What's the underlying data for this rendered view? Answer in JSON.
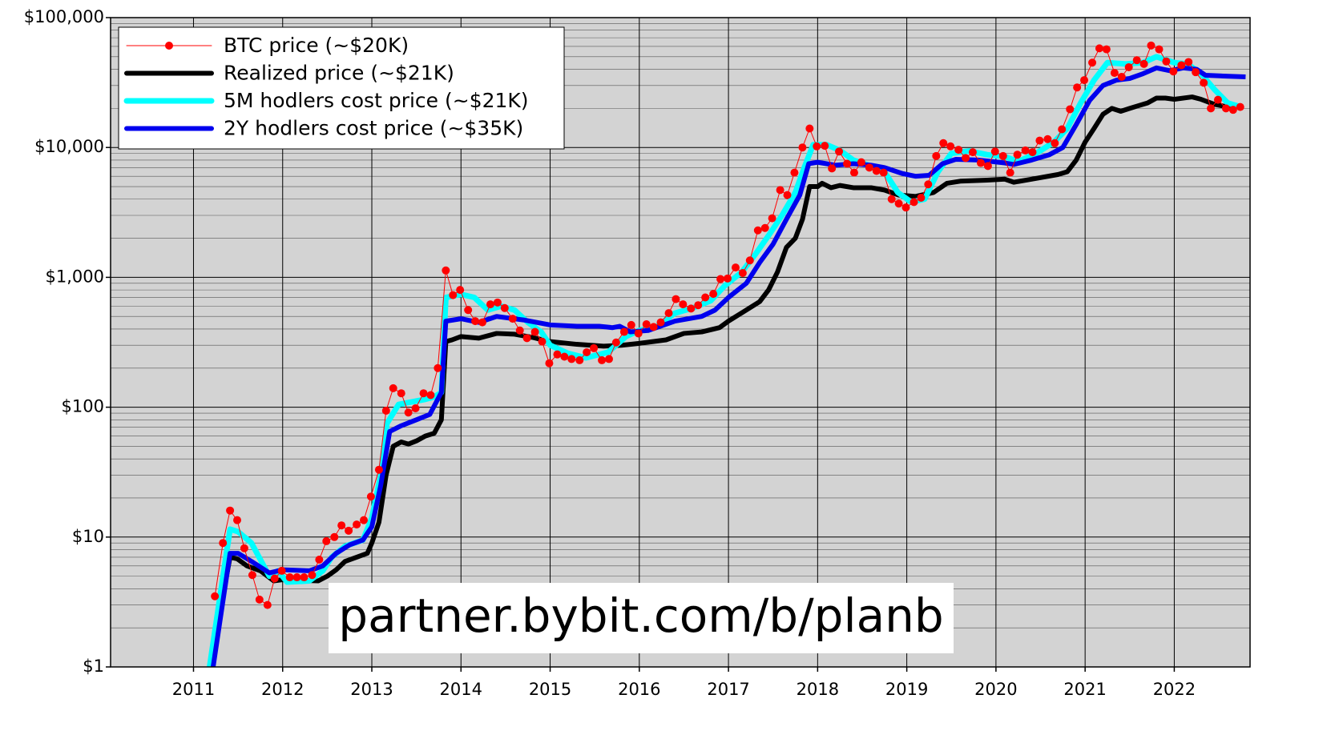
{
  "chart_data": {
    "type": "line",
    "log_scale": true,
    "grid": true,
    "legend": "upper-left",
    "annotation": "partner.bybit.com/b/planb",
    "xlim": [
      2010.07,
      2022.85
    ],
    "xticks": [
      2011,
      2012,
      2013,
      2014,
      2015,
      2016,
      2017,
      2018,
      2019,
      2020,
      2021,
      2022
    ],
    "ylim": [
      1,
      100000
    ],
    "yticks": [
      {
        "value": 1,
        "label": "$1"
      },
      {
        "value": 10,
        "label": "$10"
      },
      {
        "value": 100,
        "label": "$100"
      },
      {
        "value": 1000,
        "label": "$1,000"
      },
      {
        "value": 10000,
        "label": "$10,000"
      },
      {
        "value": 100000,
        "label": "$100,000"
      }
    ],
    "series": [
      {
        "name": "BTC price (~$20K)",
        "color": "#ff0000",
        "markers": true,
        "x": [
          2011.24,
          2011.33,
          2011.41,
          2011.49,
          2011.57,
          2011.66,
          2011.74,
          2011.83,
          2011.91,
          2011.99,
          2012.08,
          2012.16,
          2012.24,
          2012.33,
          2012.41,
          2012.49,
          2012.58,
          2012.66,
          2012.74,
          2012.83,
          2012.91,
          2012.99,
          2013.08,
          2013.16,
          2013.24,
          2013.33,
          2013.41,
          2013.49,
          2013.58,
          2013.66,
          2013.74,
          2013.83,
          2013.91,
          2013.99,
          2014.08,
          2014.16,
          2014.24,
          2014.33,
          2014.41,
          2014.49,
          2014.58,
          2014.66,
          2014.74,
          2014.83,
          2014.91,
          2014.99,
          2015.08,
          2015.16,
          2015.24,
          2015.33,
          2015.41,
          2015.49,
          2015.58,
          2015.66,
          2015.74,
          2015.83,
          2015.91,
          2015.99,
          2016.08,
          2016.16,
          2016.24,
          2016.33,
          2016.41,
          2016.49,
          2016.58,
          2016.66,
          2016.74,
          2016.83,
          2016.91,
          2016.99,
          2017.08,
          2017.16,
          2017.24,
          2017.33,
          2017.41,
          2017.49,
          2017.58,
          2017.66,
          2017.74,
          2017.83,
          2017.91,
          2017.99,
          2018.08,
          2018.16,
          2018.24,
          2018.33,
          2018.41,
          2018.49,
          2018.58,
          2018.66,
          2018.74,
          2018.83,
          2018.91,
          2018.99,
          2019.08,
          2019.16,
          2019.24,
          2019.33,
          2019.41,
          2019.49,
          2019.58,
          2019.66,
          2019.74,
          2019.83,
          2019.91,
          2019.99,
          2020.08,
          2020.16,
          2020.24,
          2020.33,
          2020.41,
          2020.49,
          2020.58,
          2020.66,
          2020.74,
          2020.83,
          2020.91,
          2020.99,
          2021.08,
          2021.16,
          2021.24,
          2021.33,
          2021.41,
          2021.49,
          2021.58,
          2021.66,
          2021.74,
          2021.83,
          2021.91,
          2021.99,
          2022.08,
          2022.16,
          2022.24,
          2022.33,
          2022.41,
          2022.49,
          2022.58,
          2022.66,
          2022.74
        ],
        "values": [
          3.5,
          9,
          16,
          13.5,
          8.2,
          5.1,
          3.3,
          3.0,
          4.8,
          5.5,
          4.9,
          4.9,
          4.9,
          5.1,
          6.7,
          9.3,
          10,
          12.3,
          11.2,
          12.5,
          13.5,
          20.5,
          33,
          94,
          140,
          128,
          91,
          98,
          128,
          124,
          200,
          1130,
          730,
          800,
          560,
          460,
          450,
          620,
          640,
          580,
          480,
          390,
          340,
          380,
          320,
          218,
          255,
          245,
          235,
          230,
          265,
          285,
          230,
          235,
          315,
          380,
          430,
          370,
          435,
          415,
          450,
          530,
          680,
          620,
          575,
          610,
          700,
          745,
          970,
          980,
          1190,
          1080,
          1350,
          2300,
          2400,
          2850,
          4700,
          4300,
          6400,
          10000,
          14000,
          10200,
          10300,
          6900,
          9300,
          7500,
          6400,
          7700,
          7000,
          6600,
          6400,
          4000,
          3700,
          3450,
          3800,
          4100,
          5200,
          8600,
          10800,
          10200,
          9600,
          8300,
          9200,
          7600,
          7200,
          9300,
          8600,
          6400,
          8800,
          9500,
          9200,
          11300,
          11600,
          10800,
          13800,
          19700,
          29000,
          33000,
          45000,
          58000,
          57000,
          37500,
          35000,
          41500,
          47000,
          44000,
          61000,
          57000,
          46000,
          38500,
          43000,
          45500,
          38000,
          31500,
          20000,
          23300,
          20000,
          19500,
          20500
        ]
      },
      {
        "name": "Realized price (~$21K)",
        "color": "#000000",
        "width": 6,
        "x": [
          2011.18,
          2011.41,
          2011.49,
          2011.6,
          2011.75,
          2011.9,
          2012.0,
          2012.4,
          2012.5,
          2012.6,
          2012.7,
          2012.83,
          2012.95,
          2013.0,
          2013.08,
          2013.16,
          2013.24,
          2013.33,
          2013.41,
          2013.5,
          2013.6,
          2013.7,
          2013.78,
          2013.83,
          2013.9,
          2014.0,
          2014.2,
          2014.4,
          2014.6,
          2014.8,
          2015.0,
          2015.3,
          2015.6,
          2015.8,
          2016.0,
          2016.3,
          2016.5,
          2016.7,
          2016.9,
          2017.0,
          2017.2,
          2017.35,
          2017.45,
          2017.55,
          2017.65,
          2017.75,
          2017.83,
          2017.91,
          2018.0,
          2018.05,
          2018.15,
          2018.25,
          2018.4,
          2018.6,
          2018.75,
          2018.91,
          2019.1,
          2019.3,
          2019.45,
          2019.6,
          2019.9,
          2020.1,
          2020.2,
          2020.4,
          2020.7,
          2020.8,
          2020.9,
          2021.0,
          2021.1,
          2021.2,
          2021.3,
          2021.4,
          2021.5,
          2021.6,
          2021.7,
          2021.8,
          2021.9,
          2022.0,
          2022.2,
          2022.3,
          2022.45,
          2022.6,
          2022.75
        ],
        "values": [
          1,
          7,
          6.8,
          6,
          5.5,
          4.6,
          4.7,
          4.6,
          5,
          5.6,
          6.5,
          7,
          7.5,
          9,
          13,
          30,
          50,
          54,
          52,
          55,
          60,
          63,
          80,
          320,
          330,
          350,
          340,
          370,
          365,
          345,
          320,
          305,
          295,
          300,
          310,
          330,
          370,
          380,
          410,
          460,
          560,
          650,
          800,
          1100,
          1700,
          2000,
          2800,
          5000,
          5000,
          5300,
          4900,
          5100,
          4900,
          4900,
          4700,
          4300,
          4200,
          4500,
          5300,
          5500,
          5600,
          5700,
          5400,
          5700,
          6200,
          6500,
          8000,
          11000,
          14000,
          18000,
          20000,
          19000,
          20000,
          21000,
          22000,
          24000,
          24000,
          23500,
          24500,
          23500,
          21500,
          20500,
          21000
        ]
      },
      {
        "name": "5M hodlers cost price (~$21K)",
        "color": "#00ffff",
        "width": 7,
        "x": [
          2011.18,
          2011.41,
          2011.5,
          2011.65,
          2011.85,
          2011.95,
          2012.05,
          2012.3,
          2012.45,
          2012.55,
          2012.7,
          2012.9,
          2013.0,
          2013.1,
          2013.17,
          2013.3,
          2013.45,
          2013.6,
          2013.7,
          2013.78,
          2013.83,
          2014.0,
          2014.15,
          2014.3,
          2014.45,
          2014.6,
          2014.75,
          2014.9,
          2015.0,
          2015.2,
          2015.4,
          2015.65,
          2015.85,
          2016.0,
          2016.2,
          2016.4,
          2016.6,
          2016.8,
          2016.95,
          2017.15,
          2017.3,
          2017.45,
          2017.6,
          2017.75,
          2017.85,
          2017.95,
          2018.1,
          2018.25,
          2018.4,
          2018.6,
          2018.75,
          2018.9,
          2019.05,
          2019.2,
          2019.35,
          2019.5,
          2019.7,
          2019.9,
          2020.1,
          2020.25,
          2020.45,
          2020.65,
          2020.8,
          2020.95,
          2021.1,
          2021.25,
          2021.45,
          2021.65,
          2021.8,
          2022.0,
          2022.15,
          2022.3,
          2022.45,
          2022.6,
          2022.75
        ],
        "values": [
          1,
          11.5,
          11,
          9,
          5,
          5.5,
          4.5,
          4.6,
          5.5,
          7,
          8.5,
          9.5,
          14,
          30,
          75,
          105,
          110,
          115,
          120,
          130,
          700,
          740,
          700,
          560,
          600,
          560,
          450,
          380,
          300,
          260,
          240,
          265,
          350,
          390,
          420,
          530,
          580,
          660,
          850,
          1100,
          1500,
          2100,
          3000,
          4500,
          7000,
          10500,
          10500,
          9500,
          8000,
          7200,
          6500,
          4500,
          3800,
          4000,
          6500,
          9000,
          9400,
          8800,
          8500,
          7800,
          9000,
          11000,
          14000,
          22000,
          33000,
          45000,
          44000,
          45000,
          50000,
          45000,
          44000,
          37000,
          28000,
          22000,
          20500
        ]
      },
      {
        "name": "2Y hodlers cost price (~$35K)",
        "color": "#0000ee",
        "width": 6,
        "x": [
          2011.22,
          2011.41,
          2011.5,
          2011.65,
          2011.85,
          2012.0,
          2012.3,
          2012.45,
          2012.6,
          2012.75,
          2012.9,
          2013.0,
          2013.1,
          2013.2,
          2013.33,
          2013.5,
          2013.65,
          2013.78,
          2013.83,
          2014.0,
          2014.2,
          2014.4,
          2014.7,
          2015.0,
          2015.3,
          2015.55,
          2015.7,
          2015.78,
          2015.9,
          2016.1,
          2016.4,
          2016.7,
          2016.85,
          2017.0,
          2017.2,
          2017.35,
          2017.5,
          2017.65,
          2017.8,
          2017.9,
          2018.0,
          2018.2,
          2018.4,
          2018.6,
          2018.75,
          2018.95,
          2019.1,
          2019.25,
          2019.4,
          2019.55,
          2019.8,
          2020.1,
          2020.2,
          2020.4,
          2020.6,
          2020.75,
          2020.9,
          2021.05,
          2021.2,
          2021.35,
          2021.5,
          2021.65,
          2021.8,
          2021.95,
          2022.1,
          2022.25,
          2022.35,
          2022.55,
          2022.8
        ],
        "values": [
          1,
          7.5,
          7.5,
          6.5,
          5.3,
          5.6,
          5.5,
          6,
          7.5,
          8.7,
          9.5,
          12,
          25,
          65,
          72,
          80,
          88,
          130,
          460,
          480,
          450,
          500,
          470,
          430,
          420,
          420,
          410,
          420,
          380,
          390,
          460,
          500,
          560,
          700,
          900,
          1300,
          1800,
          2800,
          4300,
          7500,
          7700,
          7300,
          7500,
          7300,
          7000,
          6300,
          6000,
          6100,
          7500,
          8100,
          8000,
          7600,
          7400,
          8000,
          8800,
          10000,
          15000,
          23000,
          30000,
          33000,
          34000,
          37000,
          41000,
          39000,
          41000,
          40000,
          36000,
          35500,
          35000
        ]
      }
    ]
  }
}
